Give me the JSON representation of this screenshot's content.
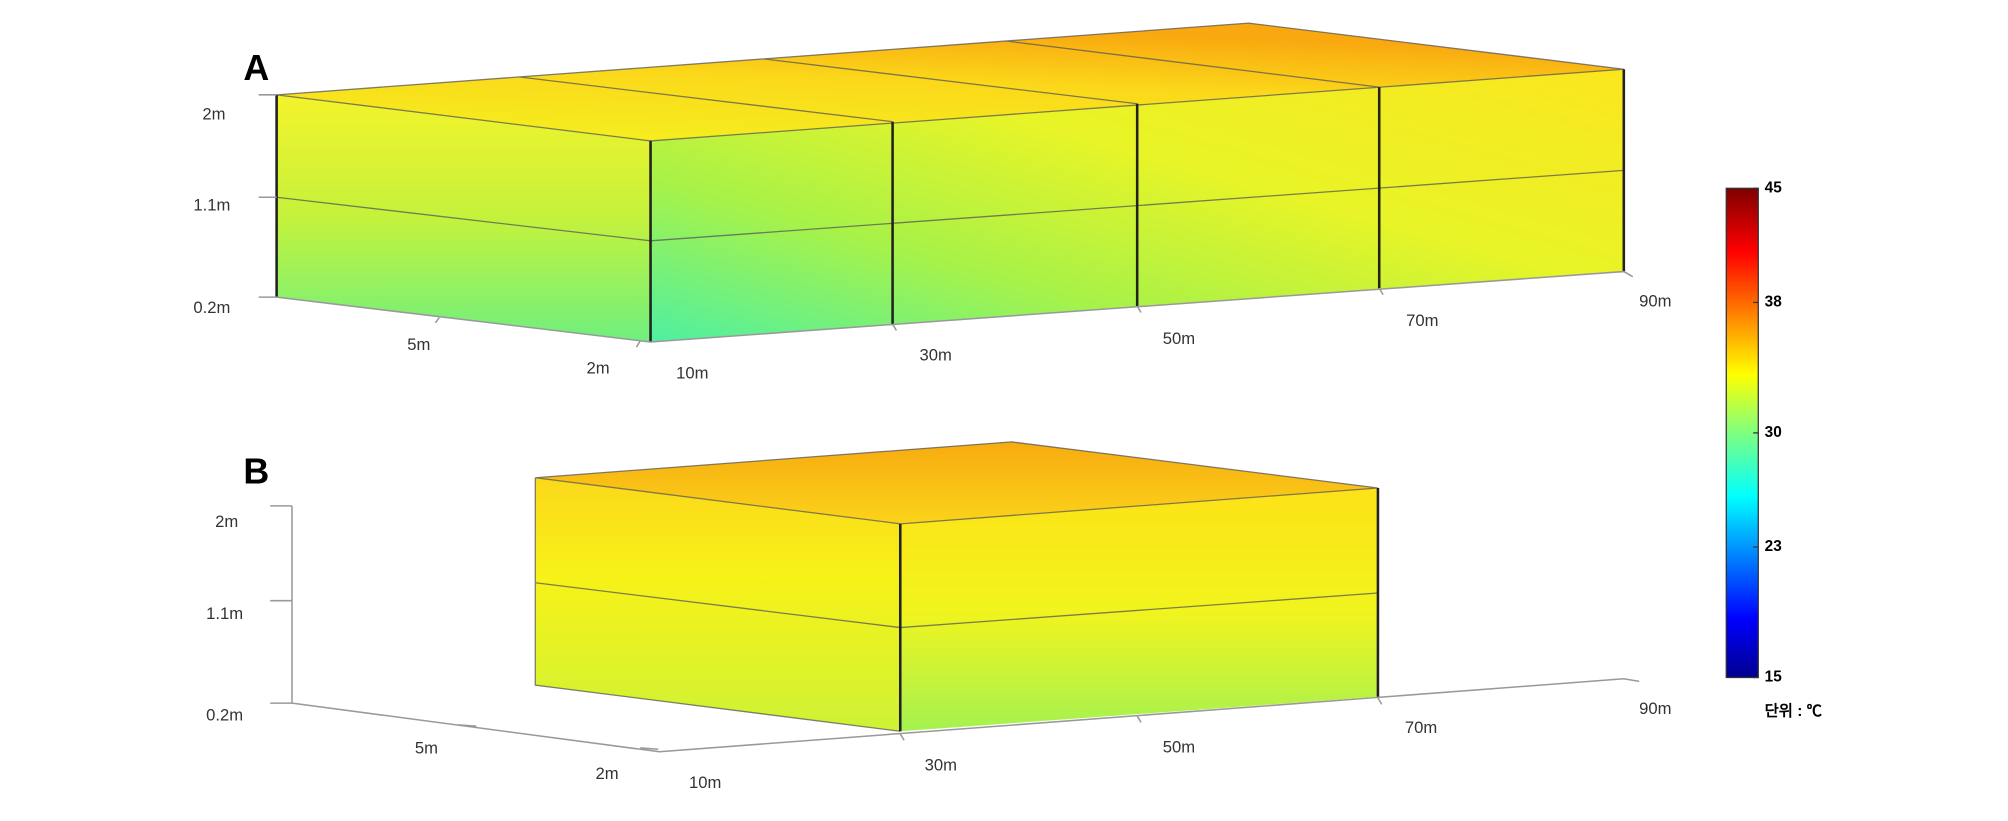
{
  "panels": [
    {
      "label": "A",
      "z_labels": [
        "2m",
        "1.1m",
        "0.2m"
      ],
      "y_labels": [
        "5m",
        "2m"
      ],
      "x_labels": [
        "10m",
        "30m",
        "50m",
        "70m",
        "90m"
      ]
    },
    {
      "label": "B",
      "z_labels": [
        "2m",
        "1.1m",
        "0.2m"
      ],
      "y_labels": [
        "5m",
        "2m"
      ],
      "x_labels": [
        "10m",
        "30m",
        "50m",
        "70m",
        "90m"
      ]
    }
  ],
  "colorbar": {
    "lim": [
      15,
      45
    ],
    "ticks": [
      45,
      38,
      30,
      23,
      15
    ],
    "unit_label": "단위 : ℃"
  }
}
